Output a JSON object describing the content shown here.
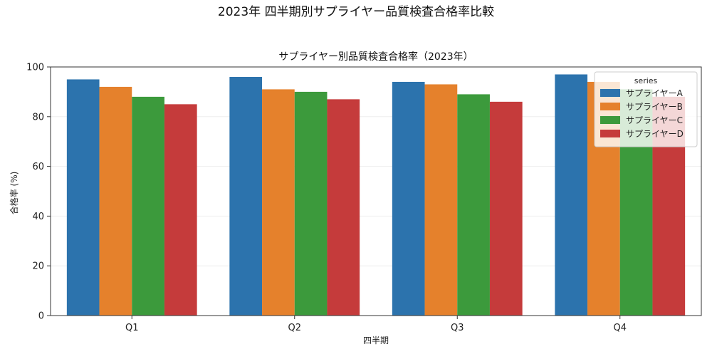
{
  "figure_title": "2023年 四半期別サプライヤー品質検査合格率比較",
  "chart_data": {
    "type": "bar",
    "title": "サプライヤー別品質検査合格率（2023年）",
    "xlabel": "四半期",
    "ylabel": "合格率 (%)",
    "categories": [
      "Q1",
      "Q2",
      "Q3",
      "Q4"
    ],
    "ylim": [
      0,
      100
    ],
    "yticks": [
      0,
      20,
      40,
      60,
      80,
      100
    ],
    "grid": true,
    "legend": {
      "title": "series",
      "placement": "top-right"
    },
    "series": [
      {
        "name": "サプライヤーA",
        "color": "#2c73ad",
        "values": [
          95,
          96,
          94,
          97
        ]
      },
      {
        "name": "サプライヤーB",
        "color": "#e5812c",
        "values": [
          92,
          91,
          93,
          94
        ]
      },
      {
        "name": "サプライヤーC",
        "color": "#3c9a3c",
        "values": [
          88,
          90,
          89,
          91
        ]
      },
      {
        "name": "サプライヤーD",
        "color": "#c53b3b",
        "values": [
          85,
          87,
          86,
          88
        ]
      }
    ]
  }
}
